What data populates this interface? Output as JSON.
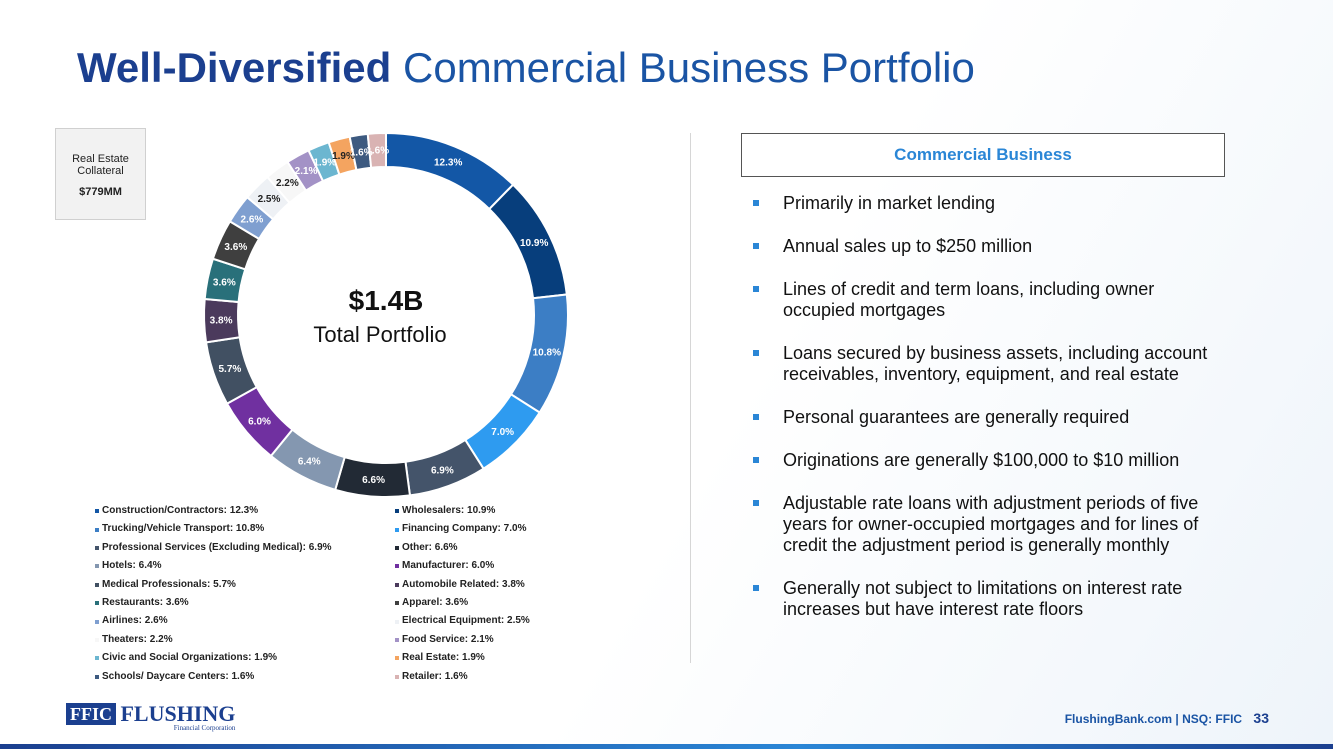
{
  "title": {
    "bold": "Well-Diversified",
    "regular": "Commercial Business Portfolio"
  },
  "collateral": {
    "label": "Real Estate Collateral",
    "amount": "$779MM"
  },
  "center": {
    "amount": "$1.4B",
    "label": "Total Portfolio"
  },
  "chart_data": {
    "type": "pie",
    "variant": "donut",
    "title": "",
    "legend_position": "bottom",
    "slices": [
      {
        "name": "Construction/Contractors",
        "value": 12.3,
        "color": "#1357a6",
        "legend": "Construction/Contractors: 12.3%",
        "label": "12.3%"
      },
      {
        "name": "Wholesalers",
        "value": 10.9,
        "color": "#073e7c",
        "legend": "Wholesalers: 10.9%",
        "label": "10.9%"
      },
      {
        "name": "Trucking/Vehicle Transport",
        "value": 10.8,
        "color": "#3c7ec5",
        "legend": "Trucking/Vehicle Transport: 10.8%",
        "label": "10.8%"
      },
      {
        "name": "Financing Company",
        "value": 7.0,
        "color": "#2e9bf0",
        "legend": "Financing Company: 7.0%",
        "label": "7.0%"
      },
      {
        "name": "Professional Services (Excluding Medical)",
        "value": 6.9,
        "color": "#44546a",
        "legend": "Professional Services (Excluding Medical): 6.9%",
        "label": "6.9%"
      },
      {
        "name": "Other",
        "value": 6.6,
        "color": "#222a35",
        "legend": "Other: 6.6%",
        "label": "6.6%"
      },
      {
        "name": "Hotels",
        "value": 6.4,
        "color": "#8497b0",
        "legend": "Hotels: 6.4%",
        "label": "6.4%"
      },
      {
        "name": "Manufacturer",
        "value": 6.0,
        "color": "#7030a0",
        "legend": "Manufacturer: 6.0%",
        "label": "6.0%"
      },
      {
        "name": "Medical Professionals",
        "value": 5.7,
        "color": "#415062",
        "legend": "Medical Professionals: 5.7%",
        "label": "5.7%"
      },
      {
        "name": "Automobile Related",
        "value": 3.8,
        "color": "#4b3a5c",
        "legend": "Automobile Related: 3.8%",
        "label": "3.8%"
      },
      {
        "name": "Restaurants",
        "value": 3.6,
        "color": "#29707a",
        "legend": "Restaurants: 3.6%",
        "label": "3.6%"
      },
      {
        "name": "Apparel",
        "value": 3.6,
        "color": "#3f3f3f",
        "legend": "Apparel: 3.6%",
        "label": "3.6%"
      },
      {
        "name": "Airlines",
        "value": 2.6,
        "color": "#7f9fd0",
        "legend": "Airlines: 2.6%",
        "label": "2.6%"
      },
      {
        "name": "Electrical Equipment",
        "value": 2.5,
        "color": "#eef1f5",
        "legend": "Electrical Equipment: 2.5%",
        "label": "2.5%"
      },
      {
        "name": "Theaters",
        "value": 2.2,
        "color": "#f7f7f7",
        "legend": "Theaters: 2.2%",
        "label": "2.2%"
      },
      {
        "name": "Food Service",
        "value": 2.1,
        "color": "#a392c6",
        "legend": "Food Service: 2.1%",
        "label": "2.1%"
      },
      {
        "name": "Civic and Social Organizations",
        "value": 1.9,
        "color": "#6cb6d0",
        "legend": "Civic and Social Organizations: 1.9%",
        "label": "1.9%"
      },
      {
        "name": "Real Estate",
        "value": 1.9,
        "color": "#f4a460",
        "legend": "Real Estate: 1.9%",
        "label": "1.9%"
      },
      {
        "name": "Schools/ Daycare Centers",
        "value": 1.6,
        "color": "#3d5a80",
        "legend": "Schools/ Daycare Centers: 1.6%",
        "label": "1.6%"
      },
      {
        "name": "Retailer",
        "value": 1.6,
        "color": "#d9b3b3",
        "legend": "Retailer: 1.6%",
        "label": "1.6%"
      }
    ]
  },
  "panel": {
    "heading": "Commercial Business",
    "bullets": [
      "Primarily in market lending",
      "Annual sales up to $250 million",
      "Lines of credit and term loans, including owner occupied mortgages",
      "Loans secured by business assets, including account receivables, inventory, equipment, and real estate",
      "Personal guarantees are generally required",
      "Originations are generally $100,000 to $10 million",
      "Adjustable rate loans with adjustment periods of five years for owner-occupied mortgages and for lines of credit the adjustment period is generally monthly",
      "Generally not subject to limitations on interest rate increases but have interest rate floors"
    ]
  },
  "logo": {
    "ffic": "FFIC",
    "name": "FLUSHING",
    "sub": "Financial Corporation"
  },
  "footer": {
    "site": "FlushingBank.com  |  NSQ: FFIC",
    "page": "33"
  },
  "colors": {
    "accent": "#2a86d6",
    "brand": "#1b3f8f"
  }
}
